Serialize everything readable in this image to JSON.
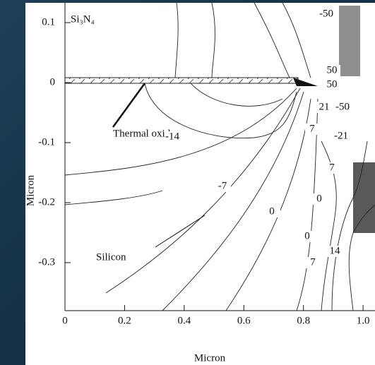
{
  "chart_data": {
    "type": "contour",
    "xlabel": "Micron",
    "ylabel": "Micron",
    "xlim": [
      0,
      1.04
    ],
    "ylim": [
      -0.38,
      0.133
    ],
    "xticks": [
      0,
      0.2,
      0.4,
      0.6,
      0.8,
      {
        "value": 1,
        "label": "1.0"
      }
    ],
    "yticks": [
      0.1,
      0,
      -0.1,
      -0.2,
      -0.3
    ],
    "annotations": [
      "Si₃N₄",
      "Thermal oxide",
      "Silicon"
    ],
    "contour_labels": [
      -50,
      50,
      50,
      21,
      -50,
      -14,
      7,
      -21,
      7,
      -7,
      0,
      0,
      0,
      7,
      14
    ]
  }
}
